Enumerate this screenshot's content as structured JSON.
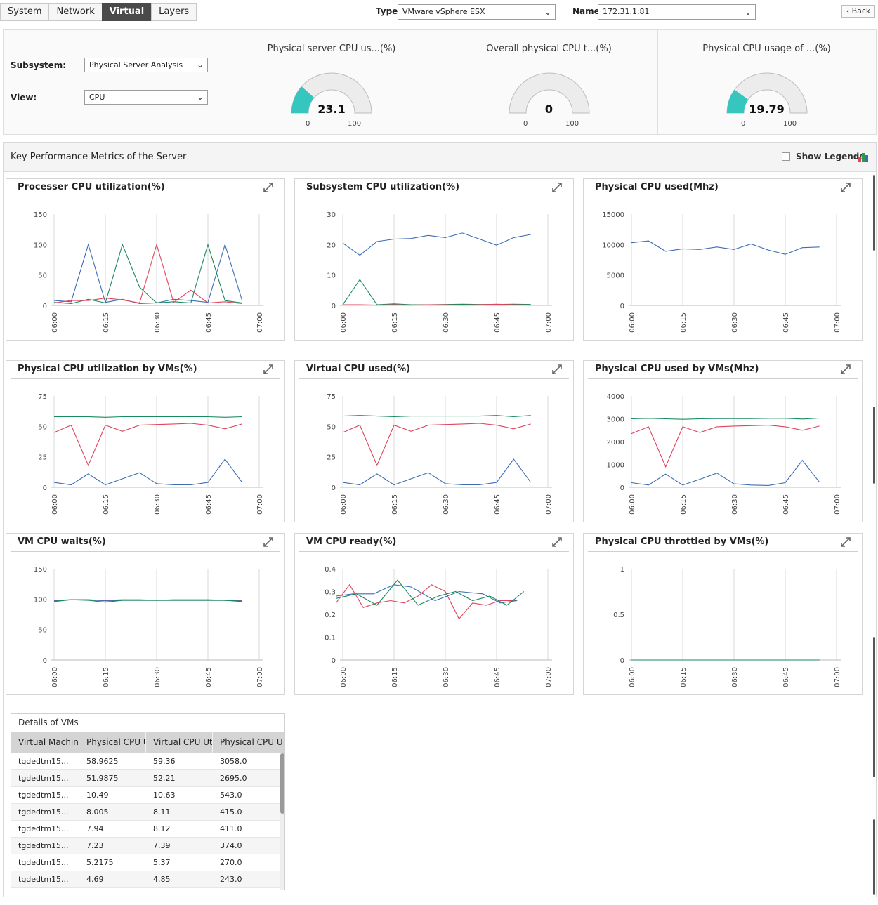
{
  "tabs": [
    "System",
    "Network",
    "Virtual",
    "Layers"
  ],
  "active_tab": "Virtual",
  "top": {
    "type_label": "Type",
    "type_value": "VMware vSphere ESX",
    "name_label": "Name",
    "name_value": "172.31.1.81",
    "back_label": "Back"
  },
  "filters": {
    "subsystem_label": "Subsystem:",
    "subsystem_value": "Physical Server Analysis",
    "view_label": "View:",
    "view_value": "CPU"
  },
  "gauges": [
    {
      "title": "Physical server CPU us...(%)",
      "value": "23.1",
      "level": 23.1,
      "min": "0",
      "max": "100"
    },
    {
      "title": "Overall physical CPU t...(%)",
      "value": "0",
      "level": 0,
      "min": "0",
      "max": "100"
    },
    {
      "title": "Physical CPU usage of ...(%)",
      "value": "19.79",
      "level": 19.79,
      "min": "0",
      "max": "100"
    }
  ],
  "main": {
    "title": "Key Performance Metrics of the Server",
    "show_legends_label": "Show Legends"
  },
  "colors": {
    "blue": "#3d6db5",
    "green": "#188a5e",
    "red": "#e0435c",
    "gauge_fill": "#36c6c0"
  },
  "chart_data": [
    {
      "type": "line",
      "title": "Processer CPU utilization(%)",
      "ylim": [
        0,
        150
      ],
      "yticks": [
        "0",
        "50",
        "100",
        "150"
      ],
      "xticks": [
        "06:00",
        "06:15",
        "06:30",
        "06:45",
        "07:00"
      ],
      "series": [
        {
          "color": "#3d6db5",
          "x": [
            0,
            5,
            10,
            15,
            20,
            25,
            30,
            35,
            40,
            45,
            50,
            55
          ],
          "values": [
            8,
            6,
            100,
            5,
            10,
            3,
            4,
            10,
            8,
            5,
            100,
            8
          ]
        },
        {
          "color": "#188a5e",
          "x": [
            0,
            5,
            10,
            15,
            20,
            25,
            30,
            35,
            40,
            45,
            50,
            55
          ],
          "values": [
            5,
            3,
            10,
            4,
            100,
            30,
            4,
            6,
            4,
            100,
            8,
            4
          ]
        },
        {
          "color": "#e0435c",
          "x": [
            0,
            5,
            10,
            15,
            20,
            25,
            30,
            35,
            40,
            45,
            50,
            55
          ],
          "values": [
            4,
            8,
            8,
            12,
            9,
            4,
            100,
            5,
            25,
            4,
            6,
            3
          ]
        }
      ]
    },
    {
      "type": "line",
      "title": "Subsystem CPU utilization(%)",
      "ylim": [
        0,
        30
      ],
      "yticks": [
        "0",
        "10",
        "20",
        "30"
      ],
      "xticks": [
        "06:00",
        "06:15",
        "06:30",
        "06:45",
        "07:00"
      ],
      "series": [
        {
          "color": "#3d6db5",
          "x": [
            0,
            5,
            10,
            15,
            20,
            25,
            30,
            35,
            40,
            45,
            50,
            55
          ],
          "values": [
            20.5,
            16.5,
            21,
            21.8,
            22,
            23,
            22.3,
            23.8,
            21.8,
            19.8,
            22.3,
            23.3
          ]
        },
        {
          "color": "#188a5e",
          "x": [
            0,
            5,
            10,
            15,
            20,
            25,
            30,
            35,
            40,
            45,
            50,
            55
          ],
          "values": [
            0.2,
            8.5,
            0.2,
            0.5,
            0.2,
            0.2,
            0.3,
            0.4,
            0.3,
            0.3,
            0.4,
            0.3
          ]
        },
        {
          "color": "#e0435c",
          "x": [
            0,
            5,
            10,
            15,
            20,
            25,
            30,
            35,
            40,
            45,
            50,
            55
          ],
          "values": [
            0.2,
            0.2,
            0.1,
            0.2,
            0.1,
            0.2,
            0.2,
            0.1,
            0.2,
            0.4,
            0.2,
            0.1
          ]
        }
      ]
    },
    {
      "type": "line",
      "title": "Physical CPU used(Mhz)",
      "ylim": [
        0,
        15000
      ],
      "yticks": [
        "0",
        "5000",
        "10000",
        "15000"
      ],
      "xticks": [
        "06:00",
        "06:15",
        "06:30",
        "06:45",
        "07:00"
      ],
      "series": [
        {
          "color": "#3d6db5",
          "x": [
            0,
            5,
            10,
            15,
            20,
            25,
            30,
            35,
            40,
            45,
            50,
            55
          ],
          "values": [
            10300,
            10600,
            8900,
            9300,
            9200,
            9600,
            9200,
            10100,
            9100,
            8400,
            9500,
            9600
          ]
        }
      ]
    },
    {
      "type": "line",
      "title": "Physical CPU utilization by VMs(%)",
      "ylim": [
        0,
        75
      ],
      "yticks": [
        "0",
        "25",
        "50",
        "75"
      ],
      "xticks": [
        "06:00",
        "06:15",
        "06:30",
        "06:45",
        "07:00"
      ],
      "series": [
        {
          "color": "#188a5e",
          "x": [
            0,
            5,
            10,
            15,
            20,
            25,
            30,
            35,
            40,
            45,
            50,
            55
          ],
          "values": [
            58,
            58,
            58,
            57.5,
            58,
            58,
            58,
            58,
            58,
            58,
            57.5,
            58
          ]
        },
        {
          "color": "#e0435c",
          "x": [
            0,
            5,
            10,
            15,
            20,
            25,
            30,
            35,
            40,
            45,
            50,
            55
          ],
          "values": [
            45,
            51,
            18,
            51,
            46,
            51,
            51.5,
            52,
            52.5,
            51,
            48,
            52
          ]
        },
        {
          "color": "#3d6db5",
          "x": [
            0,
            5,
            10,
            15,
            20,
            25,
            30,
            35,
            40,
            45,
            50,
            55
          ],
          "values": [
            4,
            2,
            11,
            2,
            7,
            12,
            3,
            2,
            2,
            4,
            23,
            4
          ]
        }
      ]
    },
    {
      "type": "line",
      "title": "Virtual CPU used(%)",
      "ylim": [
        0,
        75
      ],
      "yticks": [
        "0",
        "25",
        "50",
        "75"
      ],
      "xticks": [
        "06:00",
        "06:15",
        "06:30",
        "06:45",
        "07:00"
      ],
      "series": [
        {
          "color": "#188a5e",
          "x": [
            0,
            5,
            10,
            15,
            20,
            25,
            30,
            35,
            40,
            45,
            50,
            55
          ],
          "values": [
            58.5,
            59,
            58.5,
            58,
            58.5,
            58.5,
            58.5,
            58.5,
            58.5,
            59,
            58,
            59
          ]
        },
        {
          "color": "#e0435c",
          "x": [
            0,
            5,
            10,
            15,
            20,
            25,
            30,
            35,
            40,
            45,
            50,
            55
          ],
          "values": [
            45,
            51,
            18,
            51,
            46,
            51,
            51.5,
            52,
            52.5,
            51,
            48,
            52
          ]
        },
        {
          "color": "#3d6db5",
          "x": [
            0,
            5,
            10,
            15,
            20,
            25,
            30,
            35,
            40,
            45,
            50,
            55
          ],
          "values": [
            4,
            2,
            11,
            2,
            7,
            12,
            3,
            2,
            2,
            4,
            23,
            4
          ]
        }
      ]
    },
    {
      "type": "line",
      "title": "Physical CPU used by VMs(Mhz)",
      "ylim": [
        0,
        4000
      ],
      "yticks": [
        "0",
        "1000",
        "2000",
        "3000",
        "4000"
      ],
      "xticks": [
        "06:00",
        "06:15",
        "06:30",
        "06:45",
        "07:00"
      ],
      "series": [
        {
          "color": "#188a5e",
          "x": [
            0,
            5,
            10,
            15,
            20,
            25,
            30,
            35,
            40,
            45,
            50,
            55
          ],
          "values": [
            3000,
            3020,
            3000,
            2980,
            3000,
            3010,
            3010,
            3010,
            3020,
            3020,
            2990,
            3030
          ]
        },
        {
          "color": "#e0435c",
          "x": [
            0,
            5,
            10,
            15,
            20,
            25,
            30,
            35,
            40,
            45,
            50,
            55
          ],
          "values": [
            2350,
            2650,
            900,
            2650,
            2400,
            2650,
            2680,
            2700,
            2720,
            2650,
            2500,
            2680
          ]
        },
        {
          "color": "#3d6db5",
          "x": [
            0,
            5,
            10,
            15,
            20,
            25,
            30,
            35,
            40,
            45,
            50,
            55
          ],
          "values": [
            200,
            100,
            580,
            100,
            350,
            620,
            150,
            100,
            80,
            200,
            1180,
            220
          ]
        }
      ]
    },
    {
      "type": "line",
      "title": "VM CPU waits(%)",
      "ylim": [
        0,
        150
      ],
      "yticks": [
        "0",
        "50",
        "100",
        "150"
      ],
      "xticks": [
        "06:00",
        "06:15",
        "06:30",
        "06:45",
        "07:00"
      ],
      "series": [
        {
          "color": "#e0435c",
          "x": [
            0,
            5,
            10,
            15,
            20,
            25,
            30,
            35,
            40,
            45,
            50,
            55
          ],
          "values": [
            98,
            99,
            99,
            98,
            99,
            99,
            98,
            99,
            99,
            99,
            98,
            98
          ]
        },
        {
          "color": "#3d6db5",
          "x": [
            0,
            5,
            10,
            15,
            20,
            25,
            30,
            35,
            40,
            45,
            50,
            55
          ],
          "values": [
            97,
            99,
            99,
            97,
            98,
            98,
            98,
            98,
            98,
            98,
            98,
            97
          ]
        },
        {
          "color": "#188a5e",
          "x": [
            0,
            5,
            10,
            15,
            20,
            25,
            30,
            35,
            40,
            45,
            50,
            55
          ],
          "values": [
            96,
            99,
            98,
            95,
            98,
            98,
            98,
            98,
            98,
            98,
            98,
            96
          ]
        }
      ]
    },
    {
      "type": "line",
      "title": "VM CPU ready(%)",
      "ylim": [
        0,
        0.4
      ],
      "yticks": [
        "0",
        "0.1",
        "0.2",
        "0.3",
        "0.4"
      ],
      "xticks": [
        "06:00",
        "06:15",
        "06:30",
        "06:45",
        "07:00"
      ],
      "series": [
        {
          "color": "#e0435c",
          "x": [
            -2,
            2,
            6,
            10,
            14,
            18,
            22,
            26,
            30,
            34,
            38,
            42,
            46,
            51
          ],
          "values": [
            0.25,
            0.33,
            0.23,
            0.25,
            0.26,
            0.25,
            0.28,
            0.33,
            0.3,
            0.18,
            0.25,
            0.24,
            0.26,
            0.26
          ]
        },
        {
          "color": "#3d6db5",
          "x": [
            -2,
            3,
            9,
            15,
            20,
            27,
            34,
            41,
            46,
            51
          ],
          "values": [
            0.28,
            0.29,
            0.29,
            0.33,
            0.32,
            0.26,
            0.3,
            0.29,
            0.25,
            0.26
          ]
        },
        {
          "color": "#188a5e",
          "x": [
            -2,
            4,
            10,
            16,
            22,
            28,
            33,
            38,
            43,
            48,
            53
          ],
          "values": [
            0.27,
            0.29,
            0.24,
            0.35,
            0.24,
            0.28,
            0.3,
            0.26,
            0.28,
            0.24,
            0.3
          ]
        }
      ]
    },
    {
      "type": "line",
      "title": "Physical CPU throttled by VMs(%)",
      "ylim": [
        0,
        1
      ],
      "yticks": [
        "0",
        "0.5",
        "1"
      ],
      "xticks": [
        "06:00",
        "06:15",
        "06:30",
        "06:45",
        "07:00"
      ],
      "series": [
        {
          "color": "#188a5e",
          "x": [
            0,
            10,
            20,
            30,
            40,
            50,
            55
          ],
          "values": [
            0,
            0,
            0,
            0,
            0,
            0,
            0
          ]
        }
      ]
    }
  ],
  "table": {
    "caption": "Details of VMs",
    "columns": [
      "Virtual Machine",
      "Physical CPU U",
      "Virtual CPU Uti",
      "Physical CPU U"
    ],
    "rows": [
      [
        "tgdedtm15...",
        "58.9625",
        "59.36",
        "3058.0"
      ],
      [
        "tgdedtm15...",
        "51.9875",
        "52.21",
        "2695.0"
      ],
      [
        "tgdedtm15...",
        "10.49",
        "10.63",
        "543.0"
      ],
      [
        "tgdedtm15...",
        "8.005",
        "8.11",
        "415.0"
      ],
      [
        "tgdedtm15...",
        "7.94",
        "8.12",
        "411.0"
      ],
      [
        "tgdedtm15...",
        "7.23",
        "7.39",
        "374.0"
      ],
      [
        "tgdedtm15...",
        "5.2175",
        "5.37",
        "270.0"
      ],
      [
        "tgdedtm15...",
        "4.69",
        "4.85",
        "243.0"
      ],
      [
        "tgdedtm15...",
        "",
        "",
        ""
      ]
    ]
  }
}
